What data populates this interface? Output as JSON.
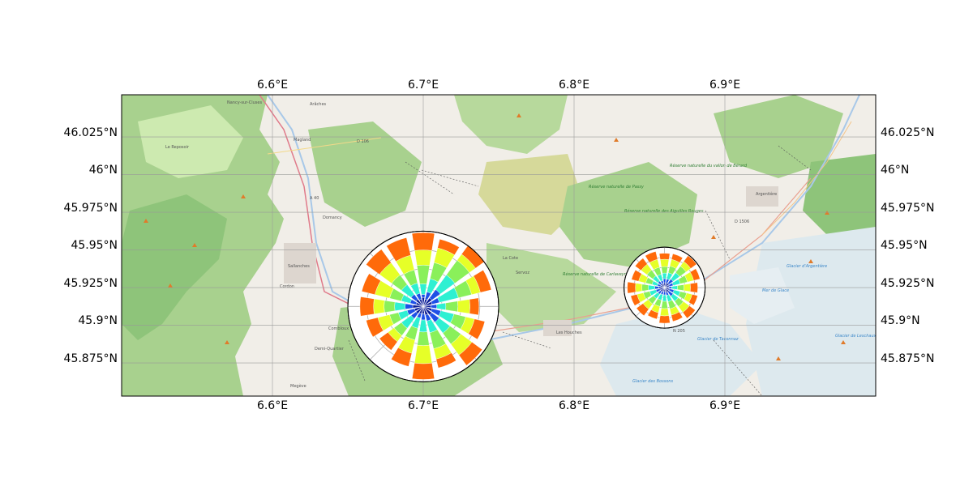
{
  "figure": {
    "lon_ticks": [
      "6.6°E",
      "6.7°E",
      "6.8°E",
      "6.9°E"
    ],
    "lat_ticks": [
      "46.025°N",
      "46°N",
      "45.975°N",
      "45.95°N",
      "45.925°N",
      "45.9°N",
      "45.875°N"
    ]
  },
  "map_labels": {
    "sallanches": "Sallanches",
    "passy": "Passy",
    "les_houches": "Les Houches",
    "argentiere": "Argentière",
    "servoz": "Servoz",
    "cordon": "Cordon",
    "combloux": "Combloux",
    "demi_quartier": "Demi-Quartier",
    "megeve": "Megève",
    "magland": "Magland",
    "le_reposoir": "Le Reposoir",
    "nancy_sur_cluses": "Nancy-sur-Cluses",
    "araches": "Arâches",
    "domancy": "Domancy",
    "la_coce": "La Cote",
    "d106": "D 106",
    "a40": "A 40",
    "d1506": "D 1506",
    "n205": "N 205",
    "reserve_passy": "Réserve naturelle de Passy",
    "reserve_aiguilles": "Réserve naturelle des Aiguilles Rouges",
    "reserve_berard": "Réserve naturelle du vallon de Bérard",
    "reserve_carlaveyron": "Réserve naturelle de Carlaveyron",
    "mer_de_glace": "Mer de Glace",
    "glacier_bossons": "Glacier des Bossons",
    "glacier_argentiere": "Glacier d'Argentière",
    "glacier_taconnaz": "Glacier de Taconnaz",
    "glacier_leschaux": "Glacier de Leschaux"
  },
  "chart_data": {
    "type": "wind_rose_map",
    "x_axis": {
      "label": "",
      "ticks": [
        6.6,
        6.7,
        6.8,
        6.9
      ],
      "range": [
        6.5,
        7.0
      ]
    },
    "y_axis": {
      "label": "",
      "ticks": [
        45.875,
        45.9,
        45.925,
        45.95,
        45.975,
        46.0,
        46.025
      ],
      "range": [
        45.853,
        46.053
      ]
    },
    "bin_colors": [
      "#0a1c96",
      "#1e50e6",
      "#2ef0d2",
      "#8af05a",
      "#e6ff28",
      "#ff6a0a"
    ],
    "bin_order": "inner-to-outer",
    "sectors": 16,
    "roses": [
      {
        "lon": 6.7,
        "lat": 45.9125,
        "bin_cumulative": [
          [
            0.12,
            0.16,
            0.3,
            0.55,
            0.75,
            0.98
          ],
          [
            0.1,
            0.2,
            0.38,
            0.6,
            0.8,
            0.92
          ],
          [
            0.14,
            0.28,
            0.52,
            0.76,
            0.86,
            1.0
          ],
          [
            0.12,
            0.22,
            0.48,
            0.66,
            0.78,
            0.93
          ],
          [
            0.1,
            0.18,
            0.3,
            0.46,
            0.62,
            0.74
          ],
          [
            0.12,
            0.24,
            0.42,
            0.58,
            0.7,
            0.84
          ],
          [
            0.14,
            0.26,
            0.44,
            0.62,
            0.8,
            0.97
          ],
          [
            0.12,
            0.2,
            0.36,
            0.58,
            0.72,
            0.84
          ],
          [
            0.1,
            0.18,
            0.34,
            0.52,
            0.76,
            0.97
          ],
          [
            0.1,
            0.16,
            0.3,
            0.46,
            0.64,
            0.82
          ],
          [
            0.12,
            0.2,
            0.36,
            0.48,
            0.58,
            0.72
          ],
          [
            0.12,
            0.22,
            0.34,
            0.46,
            0.62,
            0.78
          ],
          [
            0.14,
            0.24,
            0.38,
            0.52,
            0.66,
            0.84
          ],
          [
            0.1,
            0.18,
            0.3,
            0.46,
            0.66,
            0.84
          ],
          [
            0.12,
            0.2,
            0.36,
            0.52,
            0.72,
            0.94
          ],
          [
            0.1,
            0.18,
            0.32,
            0.5,
            0.7,
            0.94
          ]
        ]
      },
      {
        "lon": 6.86,
        "lat": 45.925,
        "bin_cumulative": [
          [
            0.12,
            0.22,
            0.36,
            0.52,
            0.7,
            0.85
          ],
          [
            0.12,
            0.22,
            0.38,
            0.55,
            0.72,
            0.86
          ],
          [
            0.14,
            0.26,
            0.46,
            0.66,
            0.8,
            0.98
          ],
          [
            0.12,
            0.22,
            0.4,
            0.58,
            0.74,
            0.9
          ],
          [
            0.1,
            0.18,
            0.32,
            0.48,
            0.64,
            0.82
          ],
          [
            0.12,
            0.24,
            0.4,
            0.56,
            0.7,
            0.84
          ],
          [
            0.14,
            0.26,
            0.42,
            0.58,
            0.76,
            0.94
          ],
          [
            0.12,
            0.2,
            0.36,
            0.54,
            0.7,
            0.86
          ],
          [
            0.1,
            0.18,
            0.34,
            0.52,
            0.7,
            0.88
          ],
          [
            0.1,
            0.18,
            0.32,
            0.48,
            0.64,
            0.8
          ],
          [
            0.12,
            0.2,
            0.34,
            0.5,
            0.66,
            0.86
          ],
          [
            0.12,
            0.22,
            0.38,
            0.54,
            0.7,
            0.86
          ],
          [
            0.14,
            0.24,
            0.4,
            0.56,
            0.72,
            0.92
          ],
          [
            0.1,
            0.18,
            0.32,
            0.48,
            0.66,
            0.84
          ],
          [
            0.12,
            0.2,
            0.36,
            0.54,
            0.72,
            0.9
          ],
          [
            0.1,
            0.18,
            0.34,
            0.52,
            0.72,
            0.92
          ]
        ]
      }
    ]
  }
}
